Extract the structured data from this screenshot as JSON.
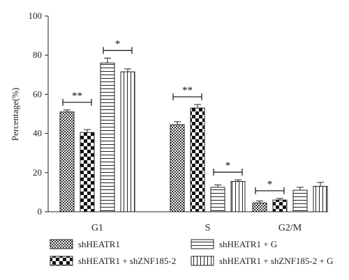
{
  "chart_data": {
    "type": "bar",
    "title": "",
    "xlabel": "",
    "ylabel": "Percentage(%)",
    "ylim": [
      0,
      100
    ],
    "yticks": [
      0,
      20,
      40,
      60,
      80,
      100
    ],
    "grid": false,
    "legend_position": "bottom",
    "categories": [
      "G1",
      "S",
      "G2/M"
    ],
    "series": [
      {
        "name": "shHEATR1",
        "pattern": "crosshatch",
        "values": [
          51,
          44.5,
          4.5
        ],
        "errors": [
          1.0,
          1.5,
          1.0
        ]
      },
      {
        "name": "shHEATR1 + shZNF185-2",
        "pattern": "checker",
        "values": [
          40.5,
          53,
          6
        ],
        "errors": [
          1.5,
          1.8,
          0.8
        ]
      },
      {
        "name": "shHEATR1 + G",
        "pattern": "horizontal-lines",
        "values": [
          76,
          12.5,
          11
        ],
        "errors": [
          2.5,
          1.2,
          1.5
        ]
      },
      {
        "name": "shHEATR1 + shZNF185-2 + G",
        "pattern": "vertical-lines",
        "values": [
          71.5,
          15.5,
          13
        ],
        "errors": [
          1.5,
          0.8,
          2.0
        ]
      }
    ],
    "significance": [
      {
        "category": "G1",
        "pair": [
          0,
          1
        ],
        "label": "**"
      },
      {
        "category": "G1",
        "pair": [
          2,
          3
        ],
        "label": "*"
      },
      {
        "category": "S",
        "pair": [
          0,
          1
        ],
        "label": "**"
      },
      {
        "category": "S",
        "pair": [
          2,
          3
        ],
        "label": "*"
      },
      {
        "category": "G2/M",
        "pair": [
          0,
          1
        ],
        "label": "*"
      }
    ]
  }
}
